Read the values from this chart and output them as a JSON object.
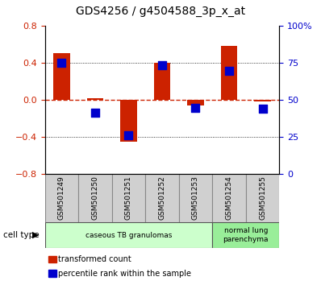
{
  "title": "GDS4256 / g4504588_3p_x_at",
  "samples": [
    "GSM501249",
    "GSM501250",
    "GSM501251",
    "GSM501252",
    "GSM501253",
    "GSM501254",
    "GSM501255"
  ],
  "transformed_count": [
    0.5,
    0.02,
    -0.45,
    0.4,
    -0.06,
    0.58,
    -0.02
  ],
  "percentile_rank": [
    0.4,
    -0.14,
    -0.38,
    0.37,
    -0.09,
    0.31,
    -0.1
  ],
  "ylim_left": [
    -0.8,
    0.8
  ],
  "ylim_right": [
    0,
    100
  ],
  "yticks_left": [
    -0.8,
    -0.4,
    0.0,
    0.4,
    0.8
  ],
  "yticks_right": [
    0,
    25,
    50,
    75,
    100
  ],
  "bar_color": "#cc2200",
  "dot_color": "#0000cc",
  "hline_color": "#cc2200",
  "cell_type_groups": [
    {
      "label": "caseous TB granulomas",
      "start": 0,
      "end": 4,
      "color": "#ccffcc"
    },
    {
      "label": "normal lung\nparenchyma",
      "start": 5,
      "end": 6,
      "color": "#99ee99"
    }
  ],
  "legend_items": [
    {
      "label": "transformed count",
      "color": "#cc2200"
    },
    {
      "label": "percentile rank within the sample",
      "color": "#0000cc"
    }
  ],
  "cell_type_label": "cell type",
  "bar_width": 0.5,
  "dot_size": 50,
  "tick_label_color_left": "#cc2200",
  "tick_label_color_right": "#0000cc",
  "sample_box_color": "#d0d0d0",
  "sample_font_size": 6.5,
  "title_fontsize": 10
}
